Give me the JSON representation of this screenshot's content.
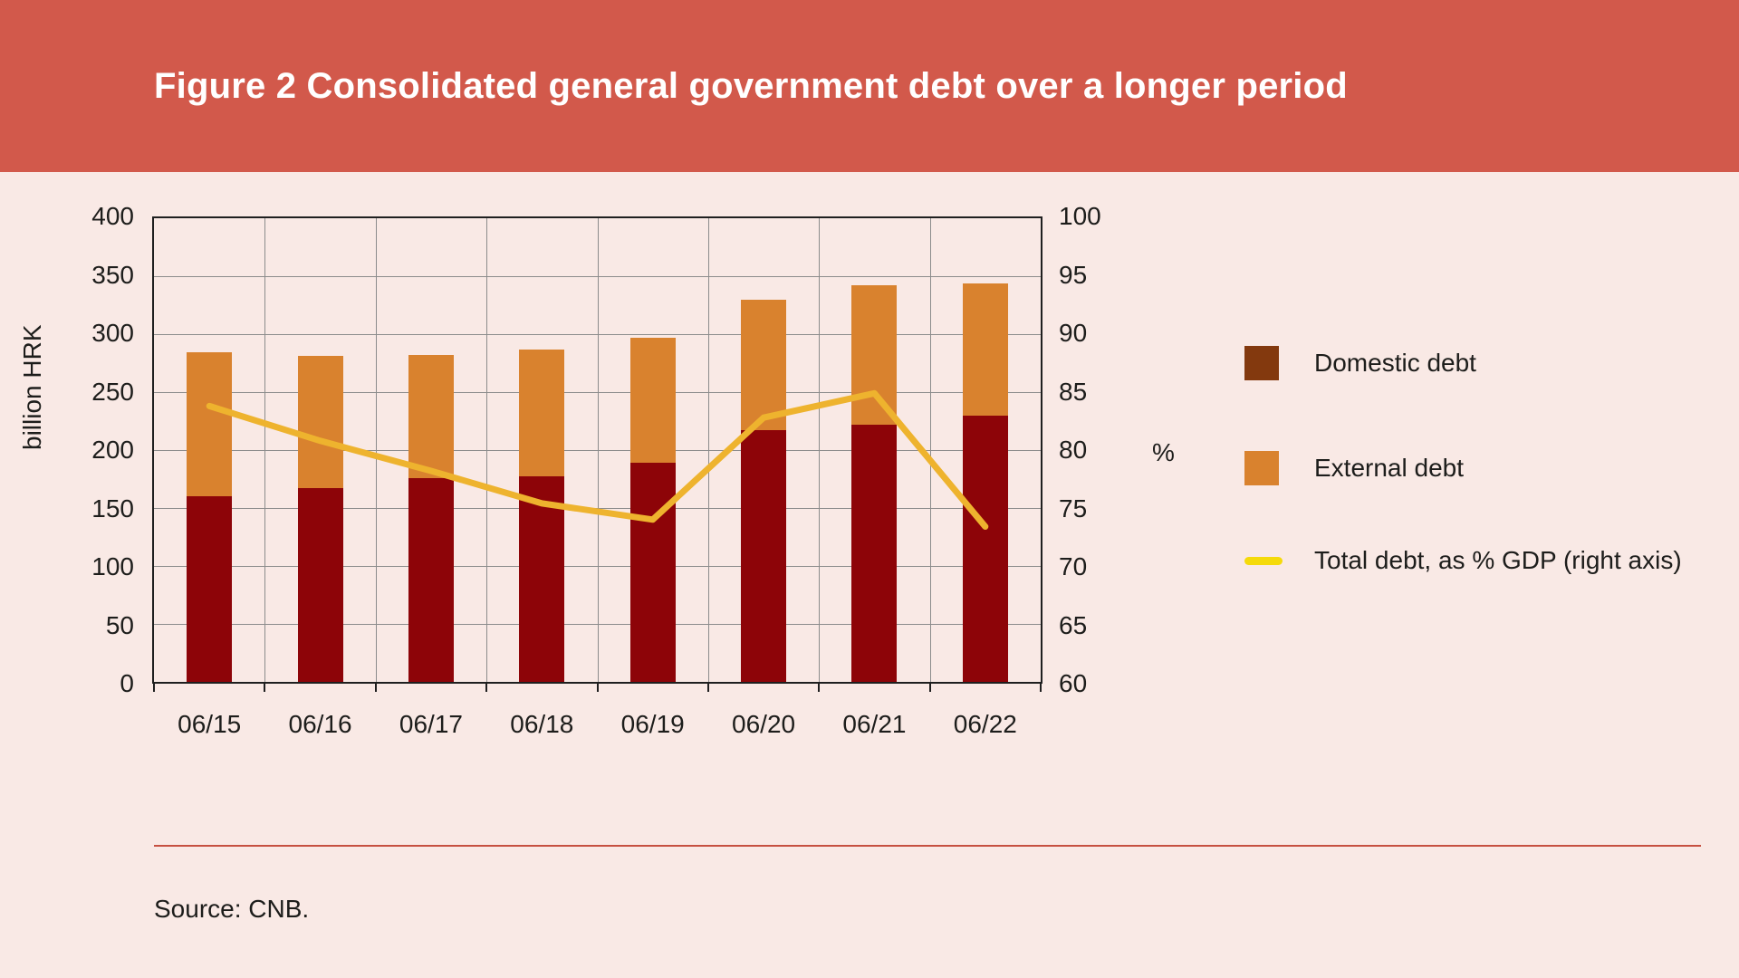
{
  "banner": {
    "title": "Figure 2 Consolidated general government debt over a longer period",
    "bg_color": "#d2594b",
    "text_color": "#ffffff"
  },
  "chart_data": {
    "type": "bar",
    "subtype": "stacked-bars-with-line-overlay",
    "title": "Figure 2 Consolidated general government debt over a longer period",
    "categories": [
      "06/15",
      "06/16",
      "06/17",
      "06/18",
      "06/19",
      "06/20",
      "06/21",
      "06/22"
    ],
    "series": [
      {
        "name": "Domestic debt",
        "type": "bar",
        "stack": "debt",
        "axis": "left",
        "color": "#8d0408",
        "values": [
          160,
          167,
          176,
          177,
          189,
          217,
          222,
          230
        ]
      },
      {
        "name": "External debt",
        "type": "bar",
        "stack": "debt",
        "axis": "left",
        "color": "#d9822e",
        "values": [
          124,
          114,
          106,
          110,
          108,
          113,
          120,
          114
        ]
      },
      {
        "name": "Total debt, as % GDP (right axis)",
        "type": "line",
        "axis": "right",
        "color": "#eeb32e",
        "values": [
          83.8,
          80.8,
          78.2,
          75.4,
          74.0,
          82.8,
          84.9,
          73.4
        ]
      }
    ],
    "stack_totals": [
      284,
      281,
      282,
      287,
      297,
      330,
      342,
      344
    ],
    "left_axis": {
      "label": "billion HRK",
      "min": 0,
      "max": 400,
      "step": 50,
      "ticks": [
        "400",
        "350",
        "300",
        "250",
        "200",
        "150",
        "100",
        "50",
        "0"
      ]
    },
    "right_axis": {
      "label": "%",
      "min": 60,
      "max": 100,
      "step": 5,
      "ticks": [
        "100",
        "95",
        "90",
        "85",
        "80",
        "75",
        "70",
        "65",
        "60"
      ]
    },
    "grid": true,
    "legend_position": "right",
    "grid_color": "#8c8c8c",
    "frame_color": "#1f1f1f"
  },
  "legend": {
    "items": [
      {
        "label": "Domestic debt",
        "swatch": "square",
        "color": "#83390e"
      },
      {
        "label": "External debt",
        "swatch": "square",
        "color": "#d9822e"
      },
      {
        "label": "Total debt, as % GDP (right axis)",
        "swatch": "line",
        "color": "#f5da0a"
      }
    ]
  },
  "footer": {
    "source_text": "Source: CNB."
  }
}
